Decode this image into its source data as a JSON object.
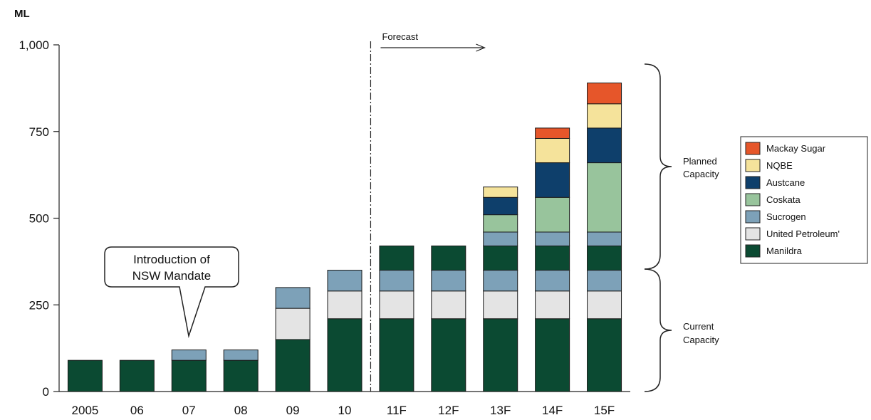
{
  "chart_data": {
    "type": "bar",
    "stacked": true,
    "unit_label": "ML",
    "categories": [
      "2005",
      "06",
      "07",
      "08",
      "09",
      "10",
      "11F",
      "12F",
      "13F",
      "14F",
      "15F"
    ],
    "ylim": [
      0,
      1000
    ],
    "yticks": [
      0,
      250,
      500,
      750,
      1000
    ],
    "ytick_labels": [
      "0",
      "250",
      "500",
      "750",
      "1,000"
    ],
    "grid": false,
    "series": [
      {
        "name": "Manildra",
        "color": "#0b4a32",
        "values": [
          90,
          90,
          90,
          90,
          150,
          210,
          210,
          210,
          210,
          210,
          210
        ]
      },
      {
        "name": "United Petroleum",
        "color": "#e4e4e4",
        "values": [
          0,
          0,
          0,
          0,
          90,
          80,
          80,
          80,
          80,
          80,
          80
        ]
      },
      {
        "name": "Sucrogen",
        "color": "#7da1b8",
        "values": [
          0,
          0,
          30,
          30,
          60,
          60,
          60,
          60,
          60,
          60,
          60
        ]
      },
      {
        "name": "Manildra",
        "color": "#0b4a32",
        "values": [
          0,
          0,
          0,
          0,
          0,
          0,
          70,
          70,
          70,
          70,
          70
        ]
      },
      {
        "name": "Sucrogen",
        "color": "#7da1b8",
        "values": [
          0,
          0,
          0,
          0,
          0,
          0,
          0,
          0,
          40,
          40,
          40
        ]
      },
      {
        "name": "Coskata",
        "color": "#98c49c",
        "values": [
          0,
          0,
          0,
          0,
          0,
          0,
          0,
          0,
          50,
          100,
          200
        ]
      },
      {
        "name": "Austcane",
        "color": "#0e3f6b",
        "values": [
          0,
          0,
          0,
          0,
          0,
          0,
          0,
          0,
          50,
          100,
          100
        ]
      },
      {
        "name": "NQBE",
        "color": "#f5e39b",
        "values": [
          0,
          0,
          0,
          0,
          0,
          0,
          0,
          0,
          30,
          70,
          70
        ]
      },
      {
        "name": "Mackay Sugar",
        "color": "#e6562a",
        "values": [
          0,
          0,
          0,
          0,
          0,
          0,
          0,
          0,
          0,
          30,
          60
        ]
      }
    ],
    "legend": {
      "placement": "right",
      "entries": [
        {
          "label": "Mackay Sugar",
          "color": "#e6562a"
        },
        {
          "label": "NQBE",
          "color": "#f5e39b"
        },
        {
          "label": "Austcane",
          "color": "#0e3f6b"
        },
        {
          "label": "Coskata",
          "color": "#98c49c"
        },
        {
          "label": "Sucrogen",
          "color": "#7da1b8"
        },
        {
          "label": "United Petroleum'",
          "color": "#e4e4e4"
        },
        {
          "label": "Manildra",
          "color": "#0b4a32"
        }
      ]
    },
    "annotations": {
      "forecast_label": "Forecast",
      "callout_line1": "Introduction of",
      "callout_line2": "NSW Mandate",
      "planned_line1": "Planned",
      "planned_line2": "Capacity",
      "current_line1": "Current",
      "current_line2": "Capacity",
      "forecast_divider_after_index": 5,
      "callout_category": "07"
    }
  }
}
